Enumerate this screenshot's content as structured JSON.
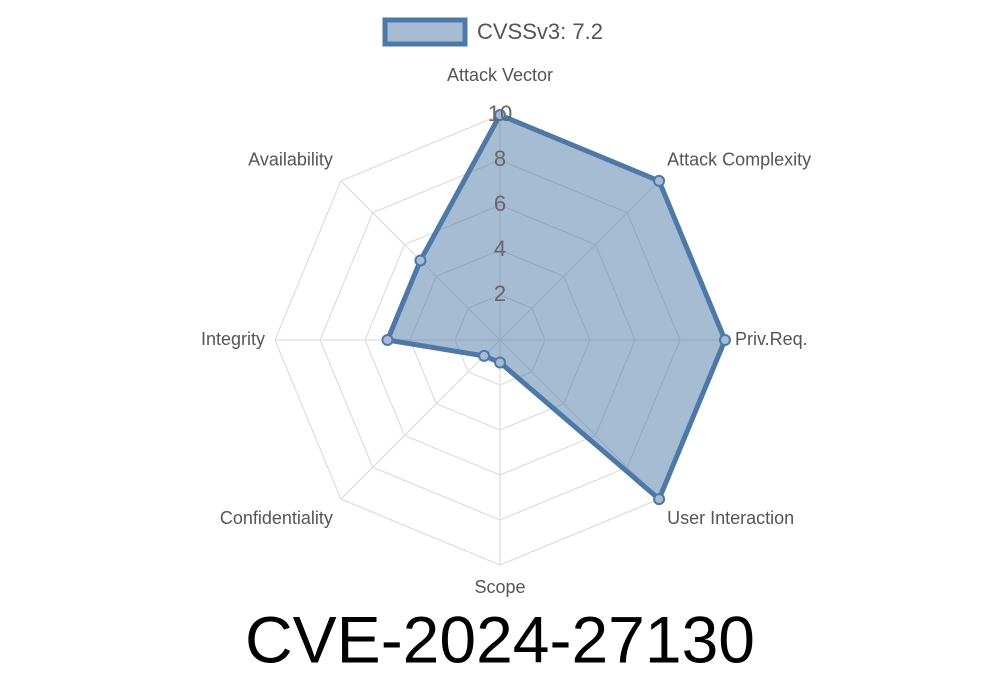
{
  "chart_data": {
    "type": "radar",
    "title": "CVE-2024-27130",
    "categories": [
      "Attack Vector",
      "Attack Complexity",
      "Priv.Req.",
      "User Interaction",
      "Scope",
      "Confidentiality",
      "Integrity",
      "Availability"
    ],
    "series": [
      {
        "name": "CVSSv3: 7.2",
        "color": "#4e79a7",
        "values": [
          10,
          10,
          10,
          10,
          1,
          1,
          5,
          5
        ]
      }
    ],
    "rlim": [
      0,
      10
    ],
    "rticks": [
      2,
      4,
      6,
      8,
      10
    ],
    "grid": true,
    "legend": "top"
  }
}
